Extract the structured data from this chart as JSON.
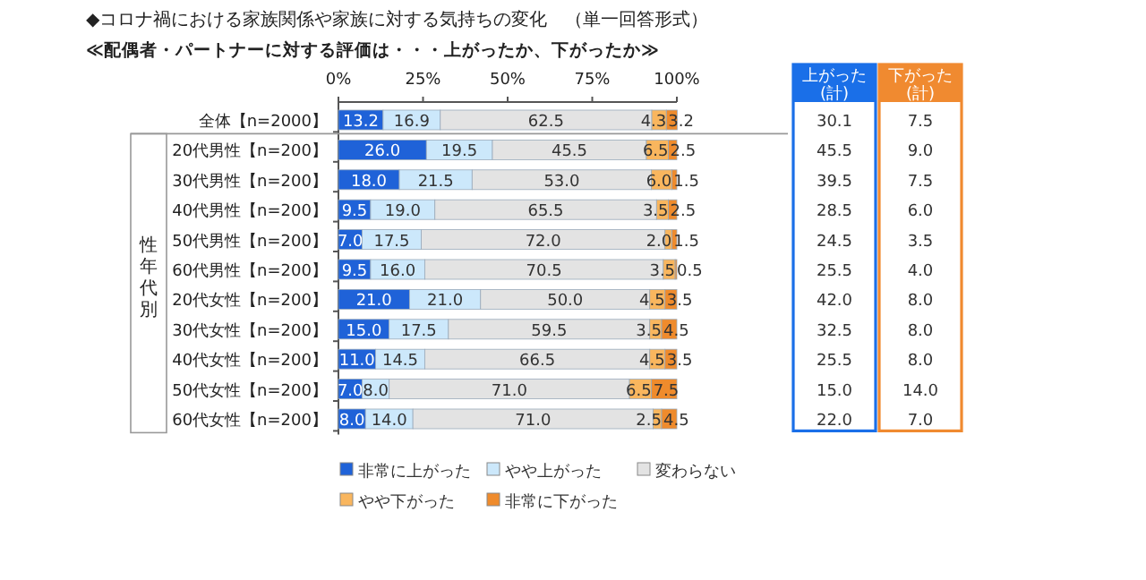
{
  "chart_data": [
    {
      "type": "bar",
      "orientation": "horizontal",
      "stacked": true,
      "title": "◆コロナ禍における家族関係や家族に対する気持ちの変化　（単一回答形式）",
      "subtitle": "≪配偶者・パートナーに対する評価は・・・上がったか、下がったか≫",
      "categories": [
        "全体【n=2000】",
        "20代男性【n=200】",
        "30代男性【n=200】",
        "40代男性【n=200】",
        "50代男性【n=200】",
        "60代男性【n=200】",
        "20代女性【n=200】",
        "30代女性【n=200】",
        "40代女性【n=200】",
        "50代女性【n=200】",
        "60代女性【n=200】"
      ],
      "series": [
        {
          "name": "非常に上がった",
          "color": "#1f62d8",
          "values": [
            13.2,
            26.0,
            18.0,
            9.5,
            7.0,
            9.5,
            21.0,
            15.0,
            11.0,
            7.0,
            8.0
          ],
          "value_labels": [
            "13.2",
            "26.0",
            "18.0",
            "9.5",
            "7.0",
            "9.5",
            "21.0",
            "15.0",
            "11.0",
            "7.0",
            "8.0"
          ]
        },
        {
          "name": "やや上がった",
          "color": "#cce8fb",
          "values": [
            16.9,
            19.5,
            21.5,
            19.0,
            17.5,
            16.0,
            21.0,
            17.5,
            14.5,
            8.0,
            14.0
          ],
          "value_labels": [
            "16.9",
            "19.5",
            "21.5",
            "19.0",
            "17.5",
            "16.0",
            "21.0",
            "17.5",
            "14.5",
            "8.0",
            "14.0"
          ]
        },
        {
          "name": "変わらない",
          "color": "#e3e3e3",
          "values": [
            62.5,
            45.5,
            53.0,
            65.5,
            72.0,
            70.5,
            50.0,
            59.5,
            66.5,
            71.0,
            71.0
          ],
          "value_labels": [
            "62.5",
            "45.5",
            "53.0",
            "65.5",
            "72.0",
            "70.5",
            "50.0",
            "59.5",
            "66.5",
            "71.0",
            "71.0"
          ]
        },
        {
          "name": "やや下がった",
          "color": "#f9b65e",
          "values": [
            4.3,
            6.5,
            6.0,
            3.5,
            2.0,
            3.5,
            4.5,
            3.5,
            4.5,
            6.5,
            2.5
          ],
          "value_labels": [
            "4.3",
            "6.5",
            "6.0",
            "3.5",
            "2.0",
            "3.5",
            "4.5",
            "3.5",
            "4.5",
            "6.5",
            "2.5"
          ]
        },
        {
          "name": "非常に下がった",
          "color": "#ef8b2c",
          "values": [
            3.2,
            2.5,
            1.5,
            2.5,
            1.5,
            0.5,
            3.5,
            4.5,
            3.5,
            7.5,
            4.5
          ],
          "value_labels": [
            "3.2",
            "2.5",
            "1.5",
            "2.5",
            "1.5",
            "0.5",
            "3.5",
            "4.5",
            "3.5",
            "7.5",
            "4.5"
          ]
        }
      ],
      "xlim": [
        0,
        100
      ],
      "xticks": [
        {
          "value": 0,
          "label": "0%"
        },
        {
          "value": 25,
          "label": "25%"
        },
        {
          "value": 50,
          "label": "50%"
        },
        {
          "value": 75,
          "label": "75%"
        },
        {
          "value": 100,
          "label": "100%"
        }
      ],
      "legend": "bottom",
      "annotations": [
        "性年代別"
      ]
    },
    {
      "type": "heatmap",
      "categories": [
        "上がった\n(計)",
        "下がった\n(計)"
      ],
      "colors": [
        "#1a6fe8",
        "#f08a30"
      ],
      "y_categories": [
        null,
        null,
        null,
        null,
        null,
        null,
        null,
        null,
        null,
        null,
        null
      ],
      "cells": [
        [
          30.1,
          7.5
        ],
        [
          45.5,
          9.0
        ],
        [
          39.5,
          7.5
        ],
        [
          28.5,
          6.0
        ],
        [
          24.5,
          3.5
        ],
        [
          25.5,
          4.0
        ],
        [
          42.0,
          8.0
        ],
        [
          32.5,
          8.0
        ],
        [
          25.5,
          8.0
        ],
        [
          15.0,
          14.0
        ],
        [
          22.0,
          7.0
        ]
      ],
      "cell_labels": [
        [
          "30.1",
          "7.5"
        ],
        [
          "45.5",
          "9.0"
        ],
        [
          "39.5",
          "7.5"
        ],
        [
          "28.5",
          "6.0"
        ],
        [
          "24.5",
          "3.5"
        ],
        [
          "25.5",
          "4.0"
        ],
        [
          "42.0",
          "8.0"
        ],
        [
          "32.5",
          "8.0"
        ],
        [
          "25.5",
          "8.0"
        ],
        [
          "15.0",
          "14.0"
        ],
        [
          "22.0",
          "7.0"
        ]
      ]
    }
  ]
}
